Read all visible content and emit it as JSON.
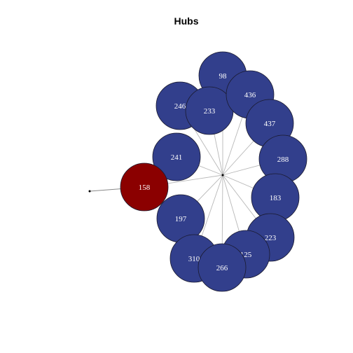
{
  "title": "Hubs",
  "colors": {
    "hub_node": "#323f8c",
    "highlight_node": "#8b0000",
    "center": "#000000"
  },
  "nodes": [
    {
      "id": "98",
      "label": "98",
      "type": "hub"
    },
    {
      "id": "246",
      "label": "246",
      "type": "hub"
    },
    {
      "id": "233",
      "label": "233",
      "type": "hub"
    },
    {
      "id": "436",
      "label": "436",
      "type": "hub"
    },
    {
      "id": "437",
      "label": "437",
      "type": "hub"
    },
    {
      "id": "288",
      "label": "288",
      "type": "hub"
    },
    {
      "id": "241",
      "label": "241",
      "type": "hub"
    },
    {
      "id": "158",
      "label": "158",
      "type": "highlight"
    },
    {
      "id": "183",
      "label": "183",
      "type": "hub"
    },
    {
      "id": "197",
      "label": "197",
      "type": "hub"
    },
    {
      "id": "223",
      "label": "223",
      "type": "hub"
    },
    {
      "id": "125",
      "label": "125",
      "type": "hub"
    },
    {
      "id": "310",
      "label": "310",
      "type": "hub"
    },
    {
      "id": "266",
      "label": "266",
      "type": "hub"
    }
  ]
}
